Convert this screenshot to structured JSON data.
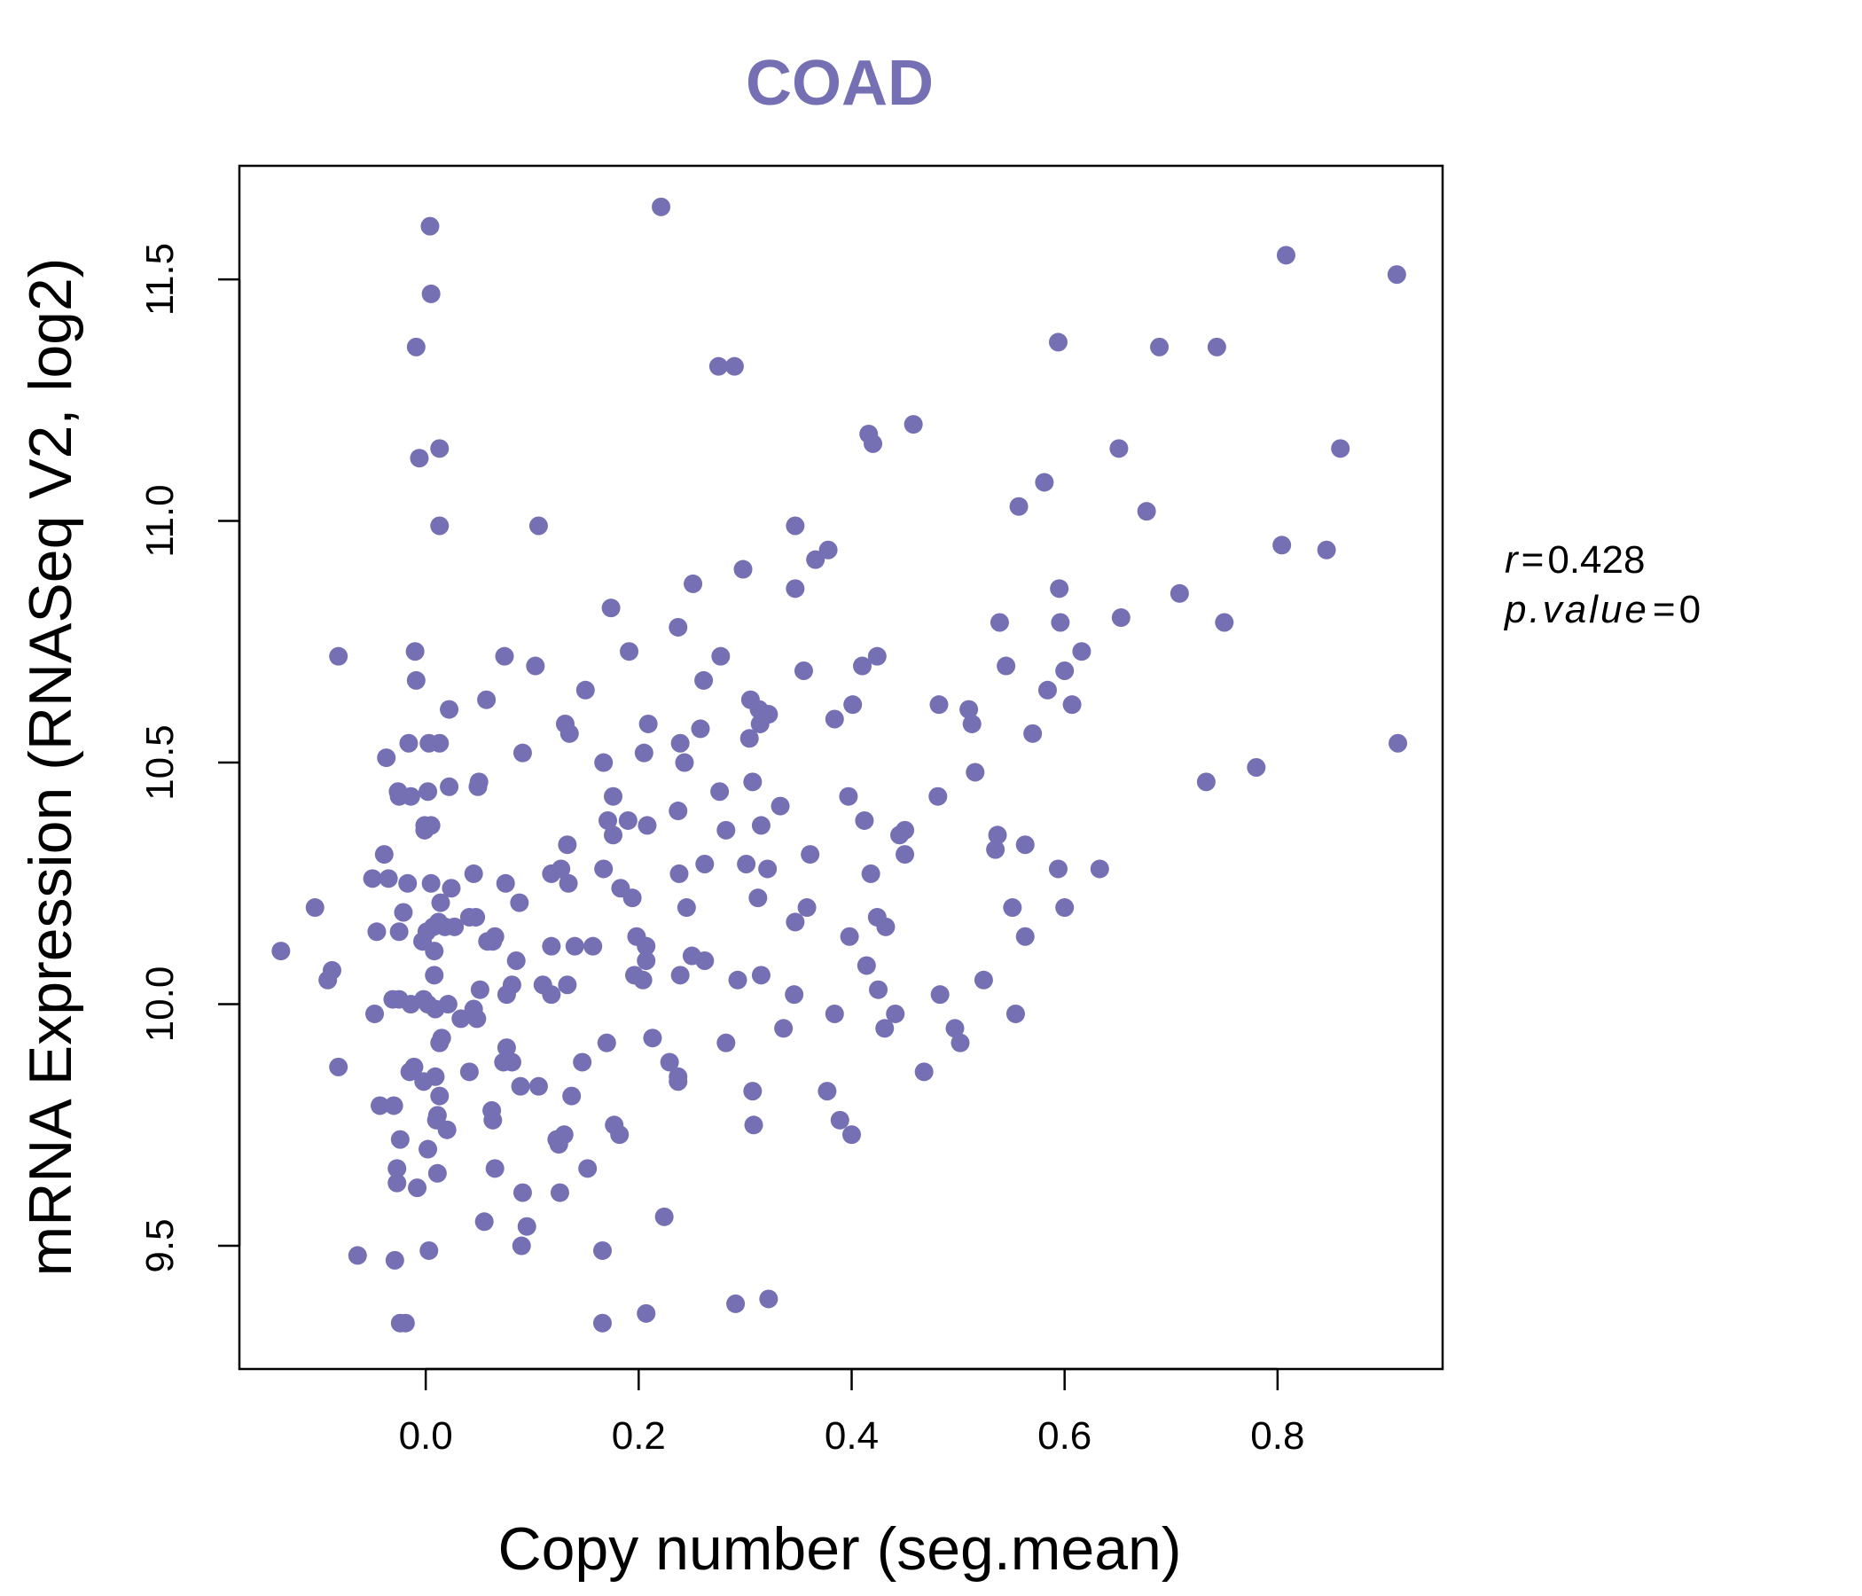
{
  "chart_data": {
    "type": "scatter",
    "title": "COAD",
    "xlabel": "Copy number (seg.mean)",
    "ylabel": "mRNA Expression (RNASeq V2, log2)",
    "xlim": [
      -0.175,
      0.955
    ],
    "ylim": [
      9.245,
      11.735
    ],
    "x_ticks": [
      0.0,
      0.2,
      0.4,
      0.6,
      0.8
    ],
    "x_tick_labels": [
      "0.0",
      "0.2",
      "0.4",
      "0.6",
      "0.8"
    ],
    "y_ticks": [
      9.5,
      10.0,
      10.5,
      11.0,
      11.5
    ],
    "y_tick_labels": [
      "9.5",
      "10.0",
      "10.5",
      "11.0",
      "11.5"
    ],
    "grid": false,
    "point_color": "#7570b3",
    "annotation": {
      "r_label": "r",
      "r_value": "0.428",
      "p_label": "p.value",
      "p_value": "0"
    },
    "points": [
      [
        0.221,
        11.65
      ],
      [
        0.004,
        11.61
      ],
      [
        0.808,
        11.55
      ],
      [
        0.912,
        11.51
      ],
      [
        0.005,
        11.47
      ],
      [
        -0.009,
        11.36
      ],
      [
        0.594,
        11.37
      ],
      [
        0.689,
        11.36
      ],
      [
        0.743,
        11.36
      ],
      [
        0.275,
        11.32
      ],
      [
        0.29,
        11.32
      ],
      [
        0.458,
        11.2
      ],
      [
        0.416,
        11.18
      ],
      [
        0.42,
        11.16
      ],
      [
        0.013,
        11.15
      ],
      [
        -0.006,
        11.13
      ],
      [
        0.651,
        11.15
      ],
      [
        0.859,
        11.15
      ],
      [
        0.581,
        11.08
      ],
      [
        0.557,
        11.03
      ],
      [
        0.677,
        11.02
      ],
      [
        0.013,
        10.99
      ],
      [
        0.106,
        10.99
      ],
      [
        0.347,
        10.99
      ],
      [
        0.804,
        10.95
      ],
      [
        0.846,
        10.94
      ],
      [
        0.378,
        10.94
      ],
      [
        0.366,
        10.92
      ],
      [
        0.298,
        10.9
      ],
      [
        0.251,
        10.87
      ],
      [
        0.347,
        10.86
      ],
      [
        0.595,
        10.86
      ],
      [
        0.708,
        10.85
      ],
      [
        0.174,
        10.82
      ],
      [
        0.653,
        10.8
      ],
      [
        0.75,
        10.79
      ],
      [
        0.596,
        10.79
      ],
      [
        0.539,
        10.79
      ],
      [
        0.237,
        10.78
      ],
      [
        -0.082,
        10.72
      ],
      [
        -0.01,
        10.73
      ],
      [
        0.074,
        10.72
      ],
      [
        0.191,
        10.73
      ],
      [
        0.277,
        10.72
      ],
      [
        0.424,
        10.72
      ],
      [
        0.616,
        10.73
      ],
      [
        0.41,
        10.7
      ],
      [
        0.545,
        10.7
      ],
      [
        0.103,
        10.7
      ],
      [
        0.355,
        10.69
      ],
      [
        0.6,
        10.69
      ],
      [
        -0.009,
        10.67
      ],
      [
        0.261,
        10.67
      ],
      [
        0.584,
        10.65
      ],
      [
        0.15,
        10.65
      ],
      [
        0.057,
        10.63
      ],
      [
        0.305,
        10.63
      ],
      [
        0.401,
        10.62
      ],
      [
        0.482,
        10.62
      ],
      [
        0.607,
        10.62
      ],
      [
        0.022,
        10.61
      ],
      [
        0.313,
        10.61
      ],
      [
        0.51,
        10.61
      ],
      [
        0.322,
        10.6
      ],
      [
        0.384,
        10.59
      ],
      [
        0.314,
        10.58
      ],
      [
        0.209,
        10.58
      ],
      [
        0.131,
        10.58
      ],
      [
        0.513,
        10.58
      ],
      [
        0.135,
        10.56
      ],
      [
        0.258,
        10.57
      ],
      [
        0.57,
        10.56
      ],
      [
        0.304,
        10.55
      ],
      [
        0.239,
        10.54
      ],
      [
        0.913,
        10.54
      ],
      [
        -0.016,
        10.54
      ],
      [
        0.003,
        10.54
      ],
      [
        0.013,
        10.54
      ],
      [
        0.091,
        10.52
      ],
      [
        0.205,
        10.52
      ],
      [
        -0.037,
        10.51
      ],
      [
        0.167,
        10.5
      ],
      [
        0.243,
        10.5
      ],
      [
        0.78,
        10.49
      ],
      [
        0.516,
        10.48
      ],
      [
        0.307,
        10.46
      ],
      [
        0.05,
        10.46
      ],
      [
        0.733,
        10.46
      ],
      [
        0.022,
        10.45
      ],
      [
        0.049,
        10.45
      ],
      [
        0.276,
        10.44
      ],
      [
        -0.026,
        10.44
      ],
      [
        0.002,
        10.44
      ],
      [
        -0.025,
        10.43
      ],
      [
        -0.014,
        10.43
      ],
      [
        0.176,
        10.43
      ],
      [
        0.397,
        10.43
      ],
      [
        0.481,
        10.43
      ],
      [
        0.333,
        10.41
      ],
      [
        0.237,
        10.4
      ],
      [
        0.171,
        10.38
      ],
      [
        0.19,
        10.38
      ],
      [
        0.412,
        10.38
      ],
      [
        -0.001,
        10.37
      ],
      [
        0.005,
        10.37
      ],
      [
        0.208,
        10.37
      ],
      [
        0.315,
        10.37
      ],
      [
        0.282,
        10.36
      ],
      [
        0.45,
        10.36
      ],
      [
        -0.001,
        10.36
      ],
      [
        0.176,
        10.35
      ],
      [
        0.445,
        10.35
      ],
      [
        0.537,
        10.35
      ],
      [
        0.535,
        10.32
      ],
      [
        0.563,
        10.33
      ],
      [
        0.133,
        10.33
      ],
      [
        0.361,
        10.31
      ],
      [
        0.45,
        10.31
      ],
      [
        0.301,
        10.29
      ],
      [
        0.262,
        10.29
      ],
      [
        0.167,
        10.28
      ],
      [
        0.594,
        10.28
      ],
      [
        0.633,
        10.28
      ],
      [
        0.127,
        10.28
      ],
      [
        0.418,
        10.27
      ],
      [
        0.321,
        10.28
      ],
      [
        -0.039,
        10.31
      ],
      [
        0.045,
        10.27
      ],
      [
        0.238,
        10.27
      ],
      [
        0.118,
        10.27
      ],
      [
        -0.05,
        10.26
      ],
      [
        -0.035,
        10.26
      ],
      [
        -0.017,
        10.25
      ],
      [
        0.005,
        10.25
      ],
      [
        0.075,
        10.25
      ],
      [
        0.134,
        10.25
      ],
      [
        0.183,
        10.24
      ],
      [
        0.024,
        10.24
      ],
      [
        0.088,
        10.21
      ],
      [
        0.312,
        10.22
      ],
      [
        0.194,
        10.22
      ],
      [
        -0.104,
        10.2
      ],
      [
        0.014,
        10.21
      ],
      [
        0.245,
        10.2
      ],
      [
        0.358,
        10.2
      ],
      [
        0.551,
        10.2
      ],
      [
        0.6,
        10.2
      ],
      [
        -0.021,
        10.19
      ],
      [
        0.041,
        10.18
      ],
      [
        0.047,
        10.18
      ],
      [
        0.424,
        10.18
      ],
      [
        0.012,
        10.17
      ],
      [
        0.018,
        10.16
      ],
      [
        0.027,
        10.16
      ],
      [
        0.347,
        10.17
      ],
      [
        0.432,
        10.16
      ],
      [
        0.007,
        10.16
      ],
      [
        -0.025,
        10.15
      ],
      [
        0.001,
        10.15
      ],
      [
        -0.046,
        10.15
      ],
      [
        0.065,
        10.14
      ],
      [
        0.198,
        10.14
      ],
      [
        0.398,
        10.14
      ],
      [
        0.563,
        10.14
      ],
      [
        0.058,
        10.13
      ],
      [
        0.063,
        10.13
      ],
      [
        -0.003,
        10.13
      ],
      [
        0.14,
        10.12
      ],
      [
        0.157,
        10.12
      ],
      [
        0.207,
        10.12
      ],
      [
        0.118,
        10.12
      ],
      [
        -0.136,
        10.11
      ],
      [
        0.008,
        10.11
      ],
      [
        0.25,
        10.1
      ],
      [
        0.085,
        10.09
      ],
      [
        0.262,
        10.09
      ],
      [
        0.207,
        10.09
      ],
      [
        0.414,
        10.08
      ],
      [
        -0.088,
        10.07
      ],
      [
        -0.092,
        10.05
      ],
      [
        0.008,
        10.06
      ],
      [
        0.133,
        10.04
      ],
      [
        0.11,
        10.04
      ],
      [
        0.196,
        10.06
      ],
      [
        0.239,
        10.06
      ],
      [
        0.293,
        10.05
      ],
      [
        0.315,
        10.06
      ],
      [
        0.204,
        10.05
      ],
      [
        0.524,
        10.05
      ],
      [
        0.081,
        10.04
      ],
      [
        0.051,
        10.03
      ],
      [
        0.425,
        10.03
      ],
      [
        0.118,
        10.02
      ],
      [
        0.076,
        10.02
      ],
      [
        0.346,
        10.02
      ],
      [
        0.483,
        10.02
      ],
      [
        -0.031,
        10.01
      ],
      [
        -0.025,
        10.01
      ],
      [
        -0.002,
        10.01
      ],
      [
        0.021,
        10.0
      ],
      [
        -0.014,
        10.0
      ],
      [
        0.009,
        9.99
      ],
      [
        0.002,
        10.0
      ],
      [
        0.045,
        9.99
      ],
      [
        0.033,
        9.97
      ],
      [
        0.048,
        9.97
      ],
      [
        -0.048,
        9.98
      ],
      [
        0.384,
        9.98
      ],
      [
        0.441,
        9.98
      ],
      [
        0.554,
        9.98
      ],
      [
        0.336,
        9.95
      ],
      [
        0.431,
        9.95
      ],
      [
        0.497,
        9.95
      ],
      [
        0.502,
        9.92
      ],
      [
        0.17,
        9.92
      ],
      [
        0.213,
        9.93
      ],
      [
        0.015,
        9.93
      ],
      [
        0.013,
        9.92
      ],
      [
        0.282,
        9.92
      ],
      [
        0.076,
        9.91
      ],
      [
        0.081,
        9.88
      ],
      [
        0.073,
        9.88
      ],
      [
        0.147,
        9.88
      ],
      [
        0.229,
        9.88
      ],
      [
        -0.011,
        9.87
      ],
      [
        -0.082,
        9.87
      ],
      [
        -0.015,
        9.86
      ],
      [
        0.009,
        9.85
      ],
      [
        0.041,
        9.86
      ],
      [
        0.468,
        9.86
      ],
      [
        0.237,
        9.85
      ],
      [
        -0.002,
        9.84
      ],
      [
        0.089,
        9.83
      ],
      [
        0.106,
        9.83
      ],
      [
        0.237,
        9.84
      ],
      [
        0.307,
        9.82
      ],
      [
        0.377,
        9.82
      ],
      [
        0.137,
        9.81
      ],
      [
        0.013,
        9.81
      ],
      [
        -0.043,
        9.79
      ],
      [
        -0.03,
        9.79
      ],
      [
        0.062,
        9.78
      ],
      [
        0.063,
        9.76
      ],
      [
        0.011,
        9.77
      ],
      [
        0.01,
        9.76
      ],
      [
        0.02,
        9.74
      ],
      [
        0.177,
        9.75
      ],
      [
        0.389,
        9.76
      ],
      [
        0.308,
        9.75
      ],
      [
        0.182,
        9.73
      ],
      [
        0.4,
        9.73
      ],
      [
        -0.024,
        9.72
      ],
      [
        0.123,
        9.72
      ],
      [
        0.13,
        9.73
      ],
      [
        0.125,
        9.71
      ],
      [
        0.002,
        9.7
      ],
      [
        0.065,
        9.66
      ],
      [
        -0.027,
        9.66
      ],
      [
        0.152,
        9.66
      ],
      [
        0.011,
        9.65
      ],
      [
        -0.027,
        9.63
      ],
      [
        -0.008,
        9.62
      ],
      [
        0.091,
        9.61
      ],
      [
        0.126,
        9.61
      ],
      [
        0.055,
        9.55
      ],
      [
        0.095,
        9.54
      ],
      [
        0.224,
        9.56
      ],
      [
        0.09,
        9.5
      ],
      [
        -0.064,
        9.48
      ],
      [
        -0.029,
        9.47
      ],
      [
        0.003,
        9.49
      ],
      [
        0.166,
        9.49
      ],
      [
        0.291,
        9.38
      ],
      [
        0.322,
        9.39
      ],
      [
        0.207,
        9.36
      ],
      [
        -0.024,
        9.34
      ],
      [
        -0.019,
        9.34
      ],
      [
        0.166,
        9.34
      ]
    ]
  }
}
